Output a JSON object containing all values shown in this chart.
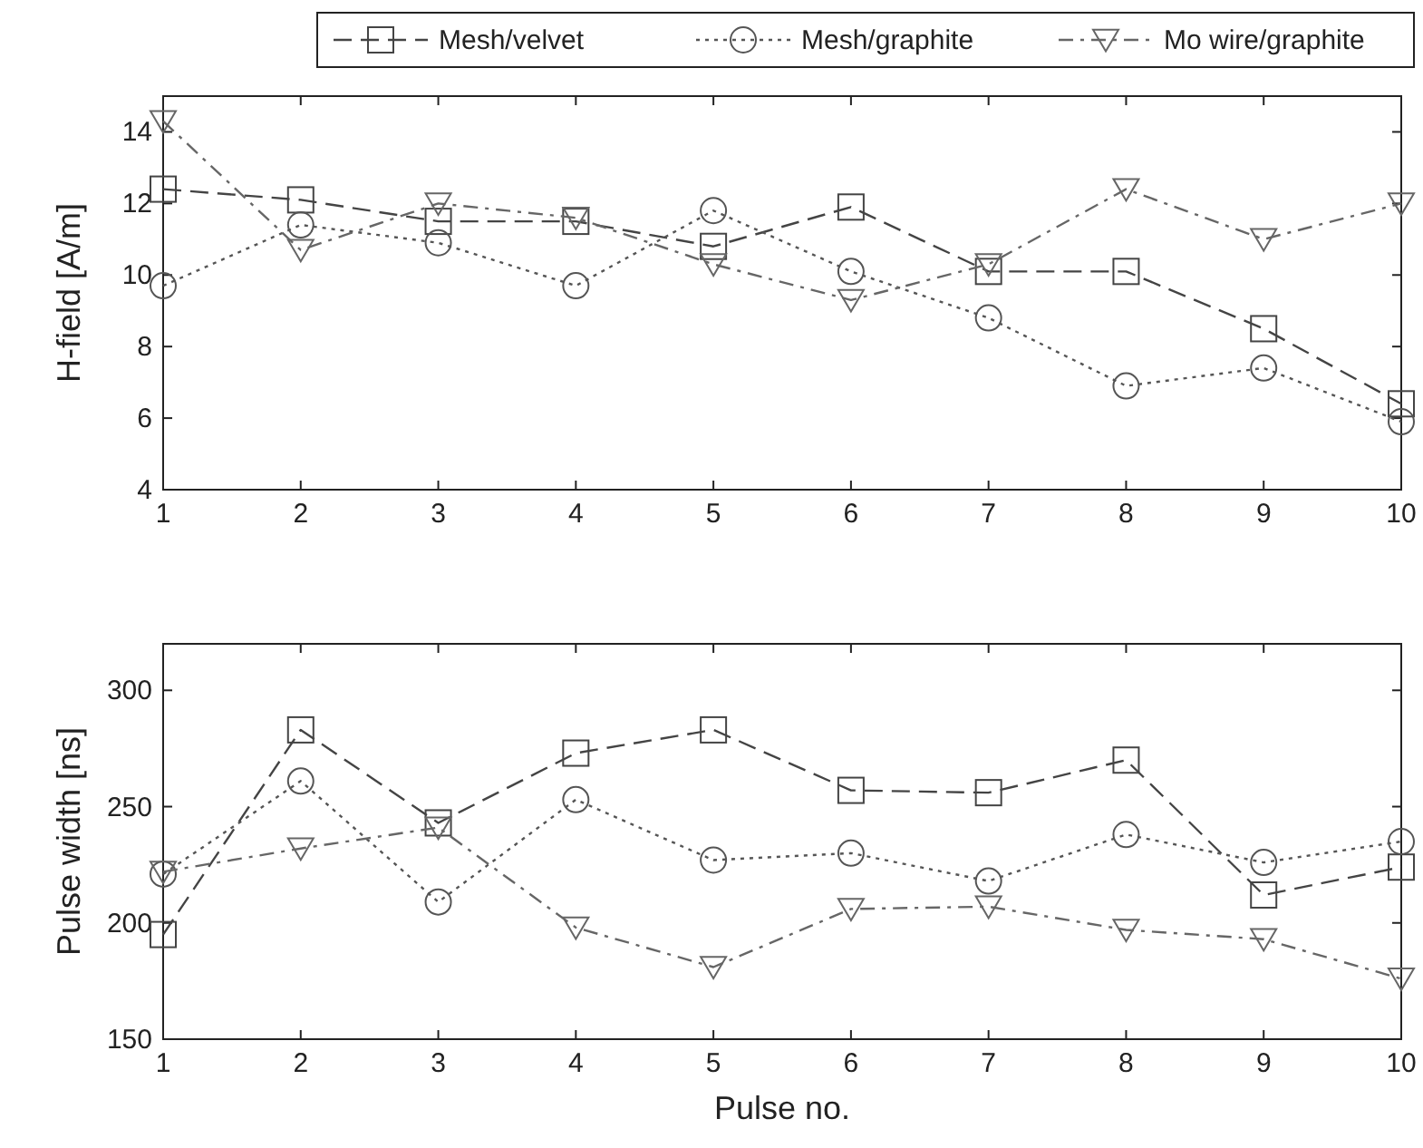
{
  "chart_data": [
    {
      "type": "line",
      "ylabel": "H-field [A/m]",
      "x": [
        1,
        2,
        3,
        4,
        5,
        6,
        7,
        8,
        9,
        10
      ],
      "xlim": [
        1,
        10
      ],
      "xticks": [
        1,
        2,
        3,
        4,
        5,
        6,
        7,
        8,
        9,
        10
      ],
      "ylim": [
        4,
        15
      ],
      "yticks": [
        4,
        6,
        8,
        10,
        12,
        14
      ],
      "grid": false,
      "legend": "top",
      "series": [
        {
          "name": "Mesh/velvet",
          "color": "#444444",
          "marker": "square",
          "line_style": "dashed",
          "values": [
            12.4,
            12.1,
            11.5,
            11.5,
            10.8,
            11.9,
            10.1,
            10.1,
            8.5,
            6.4
          ]
        },
        {
          "name": "Mesh/graphite",
          "color": "#555555",
          "marker": "circle",
          "line_style": "dotted",
          "values": [
            9.7,
            11.4,
            10.9,
            9.7,
            11.8,
            10.1,
            8.8,
            6.9,
            7.4,
            5.9
          ]
        },
        {
          "name": "Mo wire/graphite",
          "color": "#666666",
          "marker": "triangle",
          "line_style": "dashdot",
          "values": [
            14.3,
            10.7,
            12.0,
            11.6,
            10.3,
            9.3,
            10.3,
            12.4,
            11.0,
            12.0
          ]
        }
      ]
    },
    {
      "type": "line",
      "xlabel": "Pulse no.",
      "ylabel": "Pulse width [ns]",
      "x": [
        1,
        2,
        3,
        4,
        5,
        6,
        7,
        8,
        9,
        10
      ],
      "xlim": [
        1,
        10
      ],
      "xticks": [
        1,
        2,
        3,
        4,
        5,
        6,
        7,
        8,
        9,
        10
      ],
      "ylim": [
        150,
        320
      ],
      "yticks": [
        150,
        200,
        250,
        300
      ],
      "grid": false,
      "series": [
        {
          "color": "#444444",
          "marker": "square",
          "line_style": "dashed",
          "values": [
            195,
            283,
            243,
            273,
            283,
            257,
            256,
            270,
            212,
            224
          ]
        },
        {
          "color": "#555555",
          "marker": "circle",
          "line_style": "dotted",
          "values": [
            221,
            261,
            209,
            253,
            227,
            230,
            218,
            238,
            226,
            235
          ]
        },
        {
          "color": "#666666",
          "marker": "triangle",
          "line_style": "dashdot",
          "values": [
            222,
            232,
            241,
            198,
            181,
            206,
            207,
            197,
            193,
            176
          ]
        }
      ]
    }
  ]
}
